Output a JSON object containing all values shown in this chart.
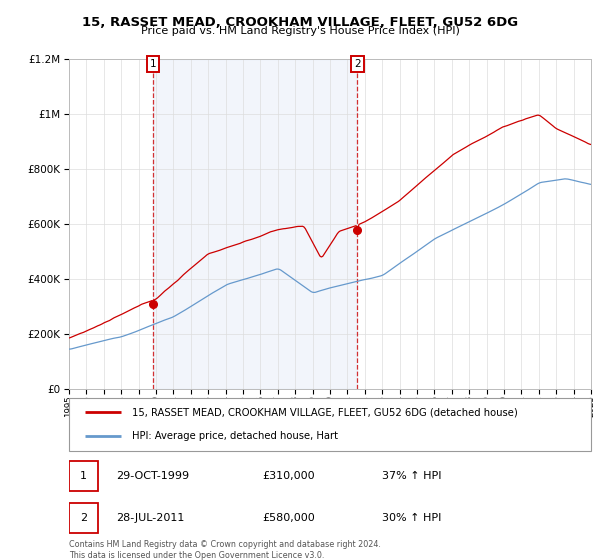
{
  "title": "15, RASSET MEAD, CROOKHAM VILLAGE, FLEET, GU52 6DG",
  "subtitle": "Price paid vs. HM Land Registry's House Price Index (HPI)",
  "legend_line1": "15, RASSET MEAD, CROOKHAM VILLAGE, FLEET, GU52 6DG (detached house)",
  "legend_line2": "HPI: Average price, detached house, Hart",
  "annotation1_date": "29-OCT-1999",
  "annotation1_price": "£310,000",
  "annotation1_hpi": "37% ↑ HPI",
  "annotation2_date": "28-JUL-2011",
  "annotation2_price": "£580,000",
  "annotation2_hpi": "30% ↑ HPI",
  "footnote": "Contains HM Land Registry data © Crown copyright and database right 2024.\nThis data is licensed under the Open Government Licence v3.0.",
  "red_color": "#cc0000",
  "blue_color": "#6699cc",
  "sale1_year": 1999.83,
  "sale1_value": 310000,
  "sale2_year": 2011.57,
  "sale2_value": 580000,
  "ylim_max": 1200000,
  "xlim_start": 1995,
  "xlim_end": 2025
}
